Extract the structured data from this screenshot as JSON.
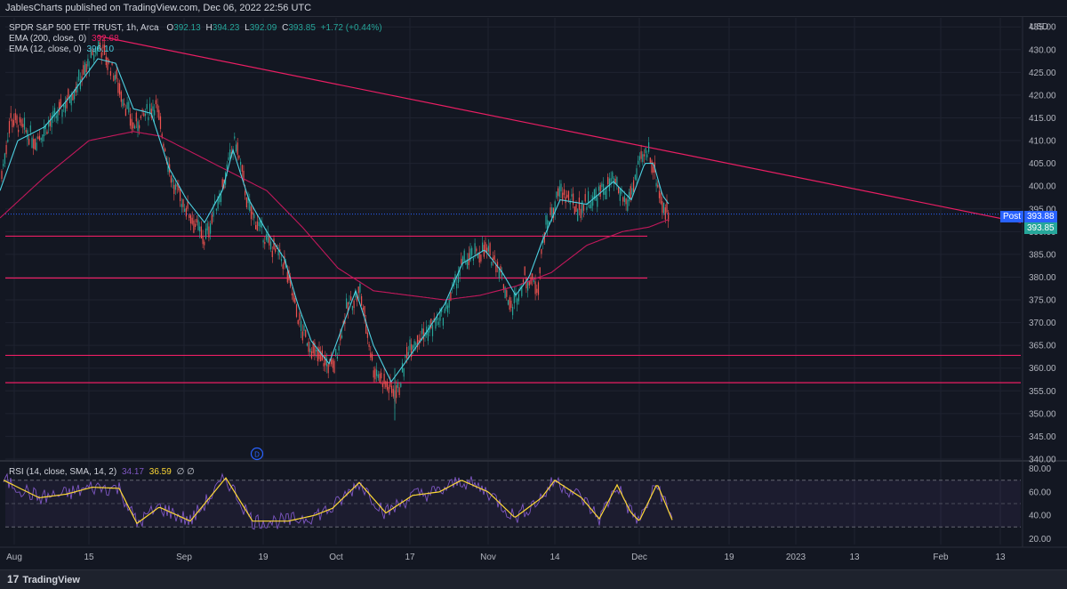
{
  "header": {
    "published": "JablesCharts published on TradingView.com, Dec 06, 2022 22:56 UTC"
  },
  "legend": {
    "symbol": "SPDR S&P 500 ETF TRUST, 1h, Arca",
    "open_label": "O",
    "open": "392.13",
    "high_label": "H",
    "high": "394.23",
    "low_label": "L",
    "low": "392.09",
    "close_label": "C",
    "close": "393.85",
    "change": "+1.72 (+0.44%)",
    "ema200_label": "EMA (200, close, 0)",
    "ema200_value": "392.68",
    "ema12_label": "EMA (12, close, 0)",
    "ema12_value": "396.10",
    "rsi_label": "RSI (14, close, SMA, 14, 2)",
    "rsi_value": "34.17",
    "rsi_sma_value": "36.59",
    "rsi_extra": "∅ ∅"
  },
  "price_axis": {
    "currency": "USD",
    "ticks": [
      "435.00",
      "430.00",
      "425.00",
      "420.00",
      "415.00",
      "410.00",
      "405.00",
      "400.00",
      "395.00",
      "390.00",
      "385.00",
      "380.00",
      "375.00",
      "370.00",
      "365.00",
      "360.00",
      "355.00",
      "350.00",
      "345.00",
      "340.00"
    ],
    "post_label": "Post",
    "post_price": "393.88",
    "last_price": "393.85"
  },
  "rsi_axis": {
    "ticks": [
      "80.00",
      "60.00",
      "40.00",
      "20.00"
    ]
  },
  "time_axis": {
    "labels": [
      "Aug",
      "15",
      "Sep",
      "19",
      "Oct",
      "17",
      "Nov",
      "14",
      "Dec",
      "19",
      "2023",
      "13",
      "Feb",
      "13"
    ]
  },
  "marker": {
    "label": "D"
  },
  "footer": {
    "brand": "TradingView",
    "logo_glyph": "17"
  },
  "colors": {
    "background": "#131722",
    "up": "#26a69a",
    "down": "#ef5350",
    "ema200": "#c2185b",
    "ema12": "#4dd0e1",
    "trendline": "#e91e63",
    "rsi_line": "#7e57c2",
    "rsi_sma": "#fdd835",
    "last_price_tag": "#26a69a",
    "post_tag": "#2962ff"
  },
  "chart_data": {
    "type": "candlestick",
    "timeframe": "1h",
    "y_range": [
      340,
      437
    ],
    "rsi_range": [
      15,
      85
    ],
    "anchors_price": [
      [
        0,
        400
      ],
      [
        12,
        415
      ],
      [
        40,
        410
      ],
      [
        70,
        417
      ],
      [
        95,
        425
      ],
      [
        112,
        431
      ],
      [
        130,
        424
      ],
      [
        150,
        413
      ],
      [
        175,
        418
      ],
      [
        195,
        400
      ],
      [
        210,
        395
      ],
      [
        230,
        388
      ],
      [
        250,
        400
      ],
      [
        265,
        410
      ],
      [
        280,
        395
      ],
      [
        300,
        388
      ],
      [
        320,
        383
      ],
      [
        330,
        375
      ],
      [
        340,
        368
      ],
      [
        355,
        363
      ],
      [
        375,
        360
      ],
      [
        390,
        373
      ],
      [
        405,
        377
      ],
      [
        420,
        360
      ],
      [
        440,
        355
      ],
      [
        448,
        355
      ],
      [
        460,
        365
      ],
      [
        480,
        368
      ],
      [
        500,
        372
      ],
      [
        520,
        383
      ],
      [
        545,
        386
      ],
      [
        560,
        383
      ],
      [
        575,
        373
      ],
      [
        590,
        380
      ],
      [
        605,
        378
      ],
      [
        612,
        390
      ],
      [
        630,
        399
      ],
      [
        650,
        395
      ],
      [
        665,
        397
      ],
      [
        690,
        401
      ],
      [
        705,
        396
      ],
      [
        720,
        405
      ],
      [
        730,
        408
      ],
      [
        745,
        396
      ],
      [
        752,
        393.85
      ]
    ],
    "ema12": [
      [
        0,
        399
      ],
      [
        20,
        410
      ],
      [
        50,
        413
      ],
      [
        80,
        420
      ],
      [
        110,
        428
      ],
      [
        130,
        427
      ],
      [
        150,
        417
      ],
      [
        170,
        416
      ],
      [
        190,
        404
      ],
      [
        210,
        397
      ],
      [
        230,
        392
      ],
      [
        250,
        399
      ],
      [
        262,
        408
      ],
      [
        280,
        397
      ],
      [
        300,
        390
      ],
      [
        320,
        384
      ],
      [
        335,
        374
      ],
      [
        350,
        366
      ],
      [
        370,
        361
      ],
      [
        385,
        369
      ],
      [
        400,
        377
      ],
      [
        420,
        365
      ],
      [
        440,
        357
      ],
      [
        455,
        361
      ],
      [
        480,
        368
      ],
      [
        500,
        374
      ],
      [
        520,
        383
      ],
      [
        545,
        386
      ],
      [
        565,
        381
      ],
      [
        580,
        376
      ],
      [
        595,
        380
      ],
      [
        610,
        388
      ],
      [
        630,
        397
      ],
      [
        660,
        396
      ],
      [
        690,
        401
      ],
      [
        710,
        397
      ],
      [
        725,
        405
      ],
      [
        735,
        405
      ],
      [
        745,
        398
      ],
      [
        752,
        396.1
      ]
    ],
    "ema200": [
      [
        0,
        393
      ],
      [
        50,
        402
      ],
      [
        100,
        410
      ],
      [
        150,
        412
      ],
      [
        180,
        411
      ],
      [
        220,
        407
      ],
      [
        260,
        403
      ],
      [
        300,
        399
      ],
      [
        340,
        391
      ],
      [
        380,
        382
      ],
      [
        420,
        377
      ],
      [
        460,
        376
      ],
      [
        500,
        375
      ],
      [
        540,
        376
      ],
      [
        580,
        378
      ],
      [
        620,
        381
      ],
      [
        660,
        387
      ],
      [
        700,
        390
      ],
      [
        730,
        391
      ],
      [
        752,
        392.68
      ]
    ],
    "horizontal_levels": [
      {
        "price": 389,
        "x_end": 728
      },
      {
        "price": 379.8,
        "x_end": 728
      },
      {
        "price": 362.8,
        "x_end": 1148
      },
      {
        "price": 356.8,
        "x_end": 1148
      }
    ],
    "dotted_level": 393.85,
    "trendline": {
      "x1": 110,
      "p1": 433,
      "x2": 1148,
      "p2": 392
    },
    "rsi_anchors": [
      [
        0,
        70
      ],
      [
        40,
        55
      ],
      [
        70,
        58
      ],
      [
        100,
        64
      ],
      [
        130,
        63
      ],
      [
        150,
        33
      ],
      [
        175,
        47
      ],
      [
        210,
        35
      ],
      [
        250,
        72
      ],
      [
        280,
        35
      ],
      [
        320,
        35
      ],
      [
        350,
        40
      ],
      [
        370,
        46
      ],
      [
        400,
        68
      ],
      [
        430,
        42
      ],
      [
        460,
        57
      ],
      [
        490,
        60
      ],
      [
        515,
        70
      ],
      [
        545,
        60
      ],
      [
        575,
        38
      ],
      [
        605,
        55
      ],
      [
        620,
        70
      ],
      [
        650,
        55
      ],
      [
        670,
        37
      ],
      [
        690,
        66
      ],
      [
        705,
        43
      ],
      [
        715,
        35
      ],
      [
        735,
        67
      ],
      [
        752,
        36
      ]
    ],
    "rsi_levels": [
      70,
      50,
      30
    ]
  }
}
